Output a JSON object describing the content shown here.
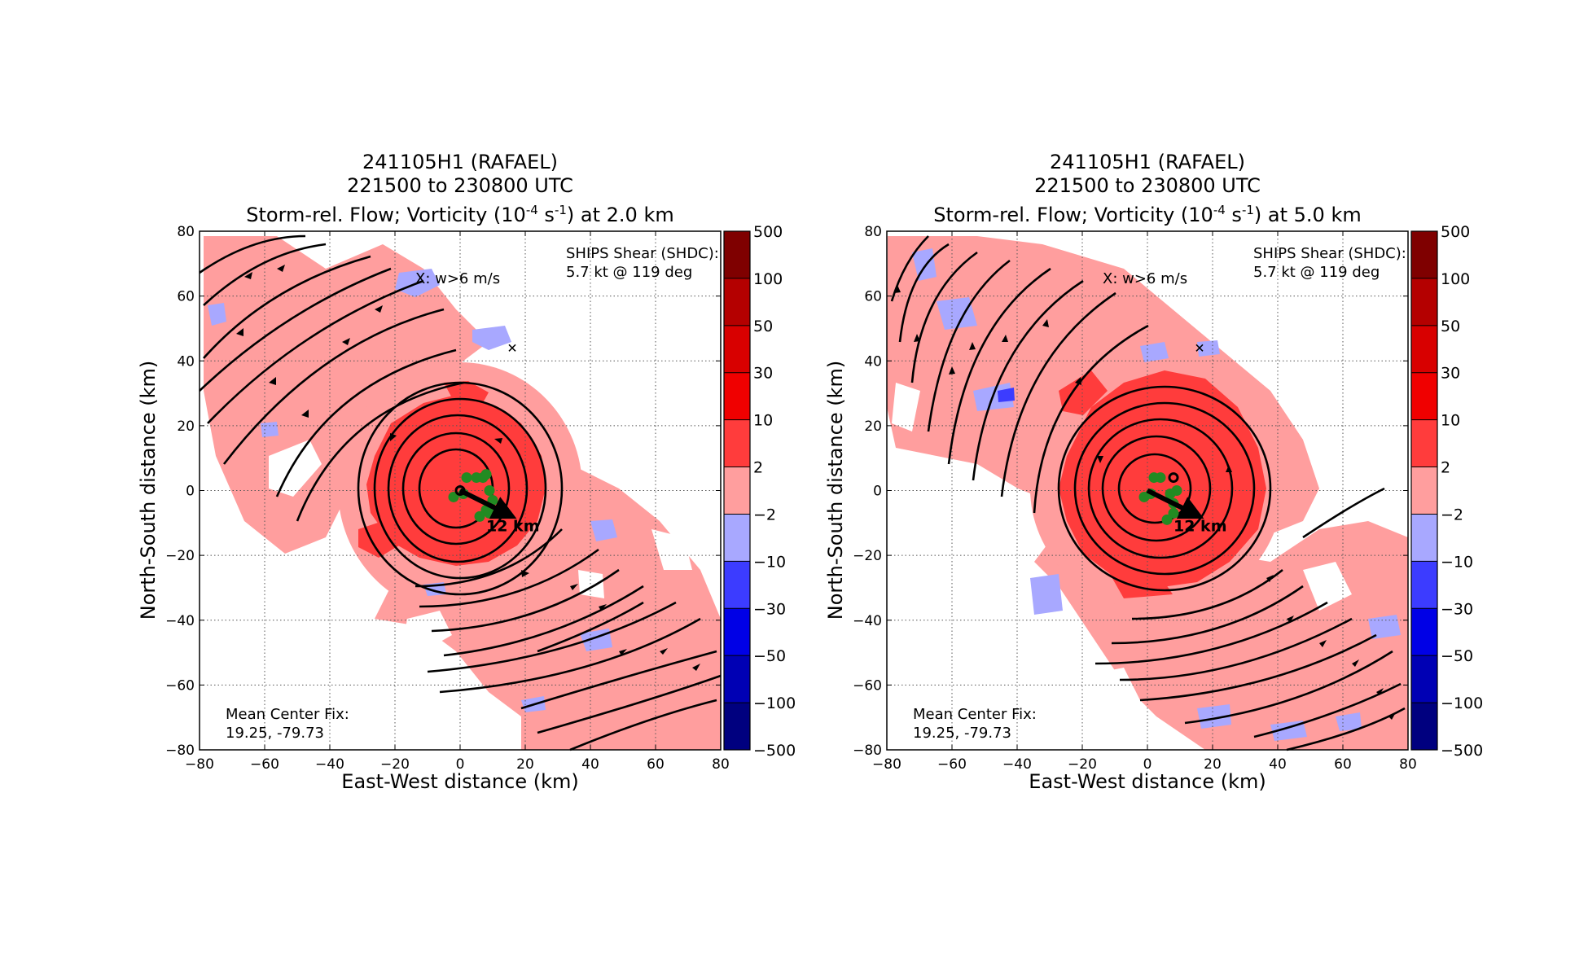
{
  "chart_data": [
    {
      "type": "heatmap",
      "title_lines": [
        "241105H1 (RAFAEL)",
        "221500 to 230800 UTC",
        "Storm-rel. Flow; Vorticity (10",
        "-4",
        " s",
        "-1",
        ") at 2.0 km"
      ],
      "xlabel": "East-West distance (km)",
      "ylabel": "North-South distance (km)",
      "xlim": [
        -80,
        80
      ],
      "ylim": [
        -80,
        80
      ],
      "xticks": [
        "−80",
        "−60",
        "−40",
        "−20",
        "0",
        "20",
        "40",
        "60",
        "80"
      ],
      "yticks": [
        "80",
        "60",
        "40",
        "20",
        "0",
        "−20",
        "−40",
        "−60",
        "−80"
      ],
      "grid": true,
      "shear_text": [
        "SHIPS Shear (SHDC):",
        "5.7 kt @ 119 deg"
      ],
      "updraft_text": "X: w>6 m/s",
      "center_fix_text": [
        "Mean Center Fix:",
        "19.25, -79.73"
      ],
      "motion_vector_label": "12 km",
      "updraft_marker": {
        "x": 16,
        "y": 44
      },
      "center_marker": {
        "x": 0,
        "y": 0
      },
      "motion_vector": {
        "x0": 0,
        "y0": 0,
        "x1": 16,
        "y1": -8
      },
      "center_fixes": [
        [
          2,
          4
        ],
        [
          5,
          4
        ],
        [
          7,
          4
        ],
        [
          8,
          5
        ],
        [
          -2,
          -2
        ],
        [
          1,
          -1
        ],
        [
          9,
          0
        ],
        [
          10,
          -3
        ],
        [
          8,
          -6
        ],
        [
          6,
          -8
        ],
        [
          9,
          -7
        ]
      ],
      "colorbar_ticks": [
        "500",
        "100",
        "50",
        "30",
        "10",
        "2",
        "−2",
        "−10",
        "−30",
        "−50",
        "−100",
        "−500"
      ]
    },
    {
      "type": "heatmap",
      "title_lines": [
        "241105H1 (RAFAEL)",
        "221500 to 230800 UTC",
        "Storm-rel. Flow; Vorticity (10",
        "-4",
        " s",
        "-1",
        ") at 5.0 km"
      ],
      "xlabel": "East-West distance (km)",
      "ylabel": "North-South distance (km)",
      "xlim": [
        -80,
        80
      ],
      "ylim": [
        -80,
        80
      ],
      "xticks": [
        "−80",
        "−60",
        "−40",
        "−20",
        "0",
        "20",
        "40",
        "60",
        "80"
      ],
      "yticks": [
        "80",
        "60",
        "40",
        "20",
        "0",
        "−20",
        "−40",
        "−60",
        "−80"
      ],
      "grid": true,
      "shear_text": [
        "SHIPS Shear (SHDC):",
        "5.7 kt @ 119 deg"
      ],
      "updraft_text": "X: w>6 m/s",
      "center_fix_text": [
        "Mean Center Fix:",
        "19.25, -79.73"
      ],
      "motion_vector_label": "12 km",
      "updraft_marker": {
        "x": 16,
        "y": 44
      },
      "center_marker": {
        "x": 8,
        "y": 4
      },
      "motion_vector": {
        "x0": 0,
        "y0": 0,
        "x1": 16,
        "y1": -8
      },
      "center_fixes": [
        [
          2,
          4
        ],
        [
          4,
          4
        ],
        [
          -1,
          -2
        ],
        [
          1,
          -1
        ],
        [
          7,
          -1
        ],
        [
          9,
          0
        ],
        [
          8,
          -4
        ],
        [
          8,
          -7
        ],
        [
          6,
          -9
        ]
      ],
      "colorbar_ticks": [
        "500",
        "100",
        "50",
        "30",
        "10",
        "2",
        "−2",
        "−10",
        "−30",
        "−50",
        "−100",
        "−500"
      ]
    }
  ],
  "colors": {
    "colorbar": [
      "#7f0000",
      "#b40000",
      "#d80000",
      "#f00000",
      "#ff3c3c",
      "#ff9e9e",
      "#ffffff",
      "#a8a8ff",
      "#3c3cff",
      "#0000e6",
      "#0000b4",
      "#00007f"
    ],
    "center_fix": "#228b22"
  }
}
